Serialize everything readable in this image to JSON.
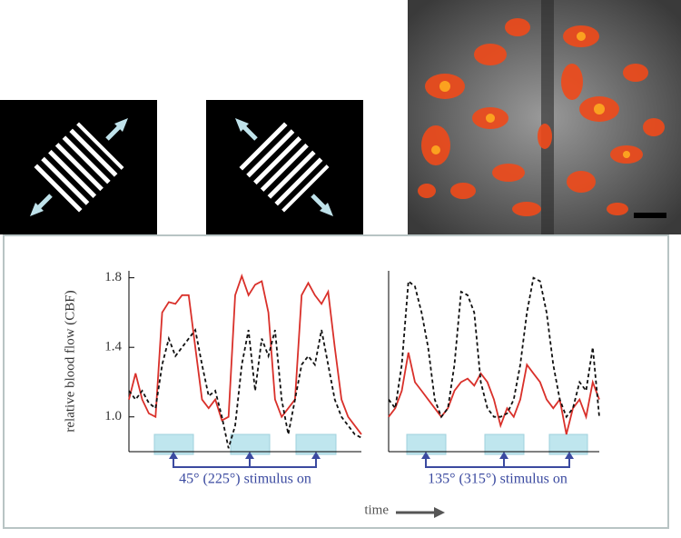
{
  "chart_data": [
    {
      "type": "line",
      "ylabel": "relative blood flow (CBF)",
      "ylim": [
        0.8,
        1.84
      ],
      "yticks": [
        {
          "value": 1.0,
          "label": "1.0"
        },
        1.4,
        1.8
      ],
      "annotation": "45° (225°) stimulus on",
      "series": [
        {
          "color": "#d9302a",
          "dash": false,
          "values": [
            1.1,
            1.25,
            1.1,
            1.02,
            1.0,
            1.6,
            1.66,
            1.65,
            1.7,
            1.7,
            1.4,
            1.1,
            1.05,
            1.1,
            0.98,
            1.0,
            1.7,
            1.81,
            1.7,
            1.76,
            1.78,
            1.6,
            1.1,
            1.0,
            1.05,
            1.1,
            1.7,
            1.77,
            1.7,
            1.65,
            1.72,
            1.4,
            1.1,
            1.0,
            0.95,
            0.9
          ]
        },
        {
          "color": "#111111",
          "dash": true,
          "values": [
            1.15,
            1.1,
            1.15,
            1.08,
            1.05,
            1.3,
            1.45,
            1.35,
            1.4,
            1.45,
            1.5,
            1.3,
            1.12,
            1.15,
            1.0,
            0.82,
            0.95,
            1.3,
            1.5,
            1.15,
            1.45,
            1.35,
            1.5,
            1.1,
            0.9,
            1.1,
            1.3,
            1.35,
            1.3,
            1.5,
            1.3,
            1.1,
            1.0,
            0.95,
            0.9,
            0.88
          ]
        }
      ]
    },
    {
      "type": "line",
      "ylim": [
        0.8,
        1.84
      ],
      "annotation": "135° (315°) stimulus on",
      "series": [
        {
          "color": "#d9302a",
          "dash": false,
          "values": [
            1.0,
            1.05,
            1.15,
            1.37,
            1.2,
            1.15,
            1.1,
            1.05,
            1.0,
            1.05,
            1.15,
            1.2,
            1.22,
            1.18,
            1.25,
            1.2,
            1.1,
            0.95,
            1.05,
            1.0,
            1.1,
            1.3,
            1.25,
            1.2,
            1.1,
            1.05,
            1.1,
            0.9,
            1.05,
            1.1,
            1.0,
            1.2,
            1.1
          ]
        },
        {
          "color": "#111111",
          "dash": true,
          "values": [
            1.1,
            1.05,
            1.3,
            1.78,
            1.75,
            1.6,
            1.4,
            1.1,
            1.0,
            1.05,
            1.3,
            1.72,
            1.7,
            1.6,
            1.2,
            1.05,
            1.0,
            1.0,
            1.02,
            1.1,
            1.3,
            1.6,
            1.8,
            1.78,
            1.6,
            1.3,
            1.1,
            1.0,
            1.05,
            1.2,
            1.15,
            1.4,
            1.0
          ]
        }
      ]
    }
  ],
  "figure": {
    "xlabel": "time"
  }
}
